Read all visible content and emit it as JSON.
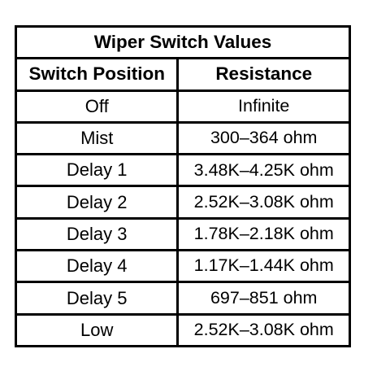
{
  "table": {
    "title": "Wiper Switch Values",
    "headers": {
      "position": "Switch Position",
      "resistance": "Resistance"
    },
    "rows": [
      {
        "position": "Off",
        "resistance": "Infinite"
      },
      {
        "position": "Mist",
        "resistance": "300–364 ohm"
      },
      {
        "position": "Delay 1",
        "resistance": "3.48K–4.25K ohm"
      },
      {
        "position": "Delay 2",
        "resistance": "2.52K–3.08K ohm"
      },
      {
        "position": "Delay 3",
        "resistance": "1.78K–2.18K ohm"
      },
      {
        "position": "Delay 4",
        "resistance": "1.17K–1.44K ohm"
      },
      {
        "position": "Delay 5",
        "resistance": "697–851 ohm"
      },
      {
        "position": "Low",
        "resistance": "2.52K–3.08K ohm"
      }
    ]
  }
}
